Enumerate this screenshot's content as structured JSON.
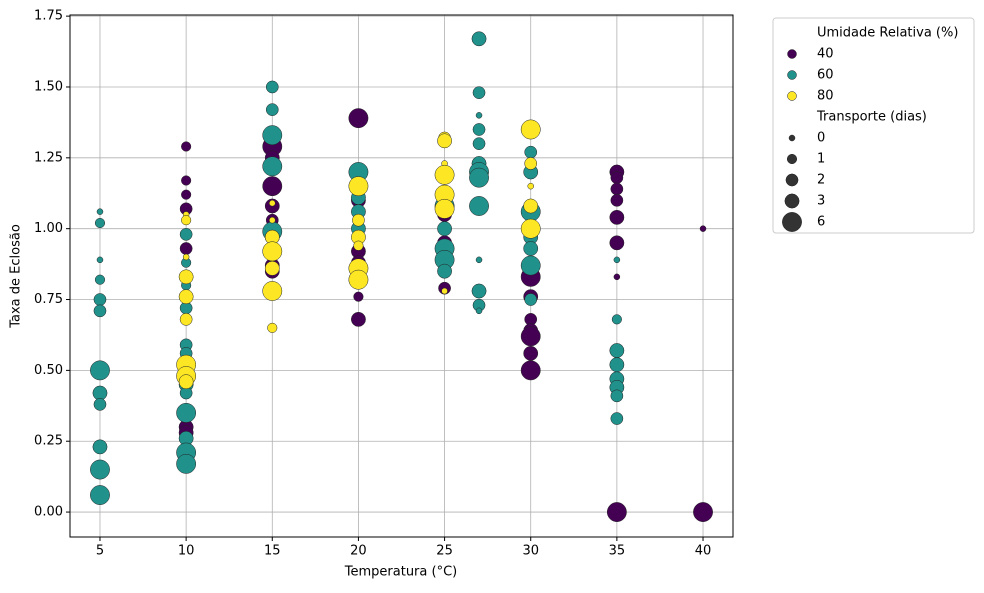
{
  "chart_data": {
    "type": "scatter",
    "xlabel": "Temperatura (°C)",
    "ylabel": "Taxa de Eclosão",
    "xlim": [
      3.26,
      41.74
    ],
    "ylim": [
      -0.088,
      1.754
    ],
    "xticks": [
      5,
      10,
      15,
      20,
      25,
      30,
      35,
      40
    ],
    "yticks": [
      {
        "value": 0,
        "label": "0.00"
      },
      {
        "value": 0.25,
        "label": "0.25"
      },
      {
        "value": 0.5,
        "label": "0.50"
      },
      {
        "value": 0.75,
        "label": "0.75"
      },
      {
        "value": 1,
        "label": "1.00"
      },
      {
        "value": 1.25,
        "label": "1.25"
      },
      {
        "value": 1.5,
        "label": "1.50"
      },
      {
        "value": 1.75,
        "label": "1.75"
      }
    ],
    "grid": true,
    "legend": "outside upper right",
    "hue_title": "Umidade Relativa (%)",
    "size_title": "Transporte (dias)",
    "size_legend": [
      0,
      1,
      2,
      3,
      6
    ],
    "series": [
      {
        "name": "40",
        "color": "#440154",
        "x": [
          10,
          10,
          10,
          10,
          10,
          10,
          10,
          10,
          10,
          15,
          15,
          15,
          15,
          15,
          15,
          15,
          20,
          20,
          20,
          20,
          20,
          20,
          25,
          25,
          25,
          30,
          30,
          30,
          30,
          30,
          30,
          30,
          35,
          35,
          35,
          35,
          35,
          35,
          35,
          35,
          40,
          40
        ],
        "values": [
          1.29,
          1.17,
          1.12,
          1.07,
          0.93,
          0.3,
          0.28,
          0.22,
          0.2,
          1.29,
          1.25,
          1.15,
          1.08,
          1.03,
          0.87,
          0.85,
          1.39,
          1.1,
          0.92,
          0.88,
          0.76,
          0.68,
          1.05,
          0.95,
          0.79,
          0.83,
          0.76,
          0.68,
          0.64,
          0.62,
          0.56,
          0.5,
          1.2,
          1.18,
          1.14,
          1.1,
          1.04,
          0.95,
          0.83,
          0.0,
          1.0,
          0.0
        ],
        "sizes": [
          1,
          1,
          1,
          2,
          2,
          3,
          3,
          3,
          2,
          6,
          3,
          6,
          3,
          2,
          3,
          3,
          6,
          3,
          3,
          3,
          1,
          3,
          3,
          3,
          2,
          6,
          3,
          2,
          3,
          6,
          3,
          6,
          3,
          2,
          2,
          2,
          3,
          3,
          0,
          6,
          0,
          6
        ]
      },
      {
        "name": "60",
        "color": "#21918c",
        "x": [
          5,
          5,
          5,
          5,
          5,
          5,
          5,
          5,
          5,
          5,
          5,
          5,
          10,
          10,
          10,
          10,
          10,
          10,
          10,
          10,
          10,
          10,
          10,
          10,
          15,
          15,
          15,
          15,
          15,
          15,
          20,
          20,
          20,
          20,
          25,
          25,
          25,
          25,
          25,
          27,
          27,
          27,
          27,
          27,
          27,
          27,
          27,
          27,
          27,
          27,
          27,
          27,
          30,
          30,
          30,
          30,
          30,
          30,
          30,
          35,
          35,
          35,
          35,
          35,
          35,
          35,
          35
        ],
        "values": [
          1.06,
          1.02,
          0.89,
          0.82,
          0.75,
          0.71,
          0.5,
          0.42,
          0.38,
          0.23,
          0.15,
          0.06,
          0.98,
          0.88,
          0.8,
          0.72,
          0.59,
          0.56,
          0.45,
          0.42,
          0.35,
          0.26,
          0.21,
          0.17,
          1.5,
          1.42,
          1.33,
          1.22,
          0.99,
          0.97,
          1.2,
          1.11,
          1.06,
          1.0,
          1.08,
          1.0,
          0.93,
          0.89,
          0.85,
          1.67,
          1.48,
          1.4,
          1.35,
          1.3,
          1.23,
          1.2,
          1.18,
          1.08,
          0.89,
          0.78,
          0.73,
          0.71,
          1.27,
          1.2,
          1.06,
          0.97,
          0.93,
          0.87,
          0.75,
          0.89,
          0.68,
          0.57,
          0.52,
          0.47,
          0.44,
          0.41,
          0.33
        ],
        "sizes": [
          0,
          1,
          0,
          1,
          2,
          2,
          6,
          3,
          2,
          3,
          6,
          6,
          2,
          1,
          1,
          2,
          2,
          2,
          3,
          2,
          6,
          3,
          6,
          6,
          2,
          2,
          6,
          6,
          6,
          3,
          6,
          3,
          3,
          3,
          6,
          3,
          6,
          6,
          3,
          3,
          2,
          0,
          2,
          2,
          3,
          6,
          6,
          6,
          0,
          3,
          2,
          0,
          2,
          3,
          6,
          3,
          3,
          6,
          2,
          0,
          1,
          3,
          3,
          3,
          3,
          2,
          2
        ]
      },
      {
        "name": "80",
        "color": "#fde725",
        "x": [
          10,
          10,
          10,
          10,
          10,
          10,
          10,
          10,
          10,
          15,
          15,
          15,
          15,
          15,
          15,
          15,
          20,
          20,
          20,
          20,
          20,
          20,
          25,
          25,
          25,
          25,
          25,
          25,
          25,
          30,
          30,
          30,
          30,
          30
        ],
        "values": [
          1.05,
          1.03,
          0.9,
          0.83,
          0.76,
          0.68,
          0.52,
          0.48,
          0.46,
          1.09,
          1.03,
          0.97,
          0.92,
          0.86,
          0.78,
          0.65,
          1.15,
          1.03,
          0.97,
          0.94,
          0.86,
          0.82,
          1.32,
          1.31,
          1.23,
          1.19,
          1.12,
          1.07,
          0.78,
          1.35,
          1.23,
          1.15,
          1.08,
          1.0
        ],
        "sizes": [
          0,
          1,
          0,
          3,
          3,
          2,
          6,
          6,
          3,
          0,
          0,
          3,
          6,
          3,
          6,
          1,
          6,
          2,
          3,
          1,
          6,
          6,
          2,
          3,
          0,
          6,
          6,
          6,
          0,
          6,
          2,
          0,
          3,
          6
        ]
      }
    ]
  }
}
